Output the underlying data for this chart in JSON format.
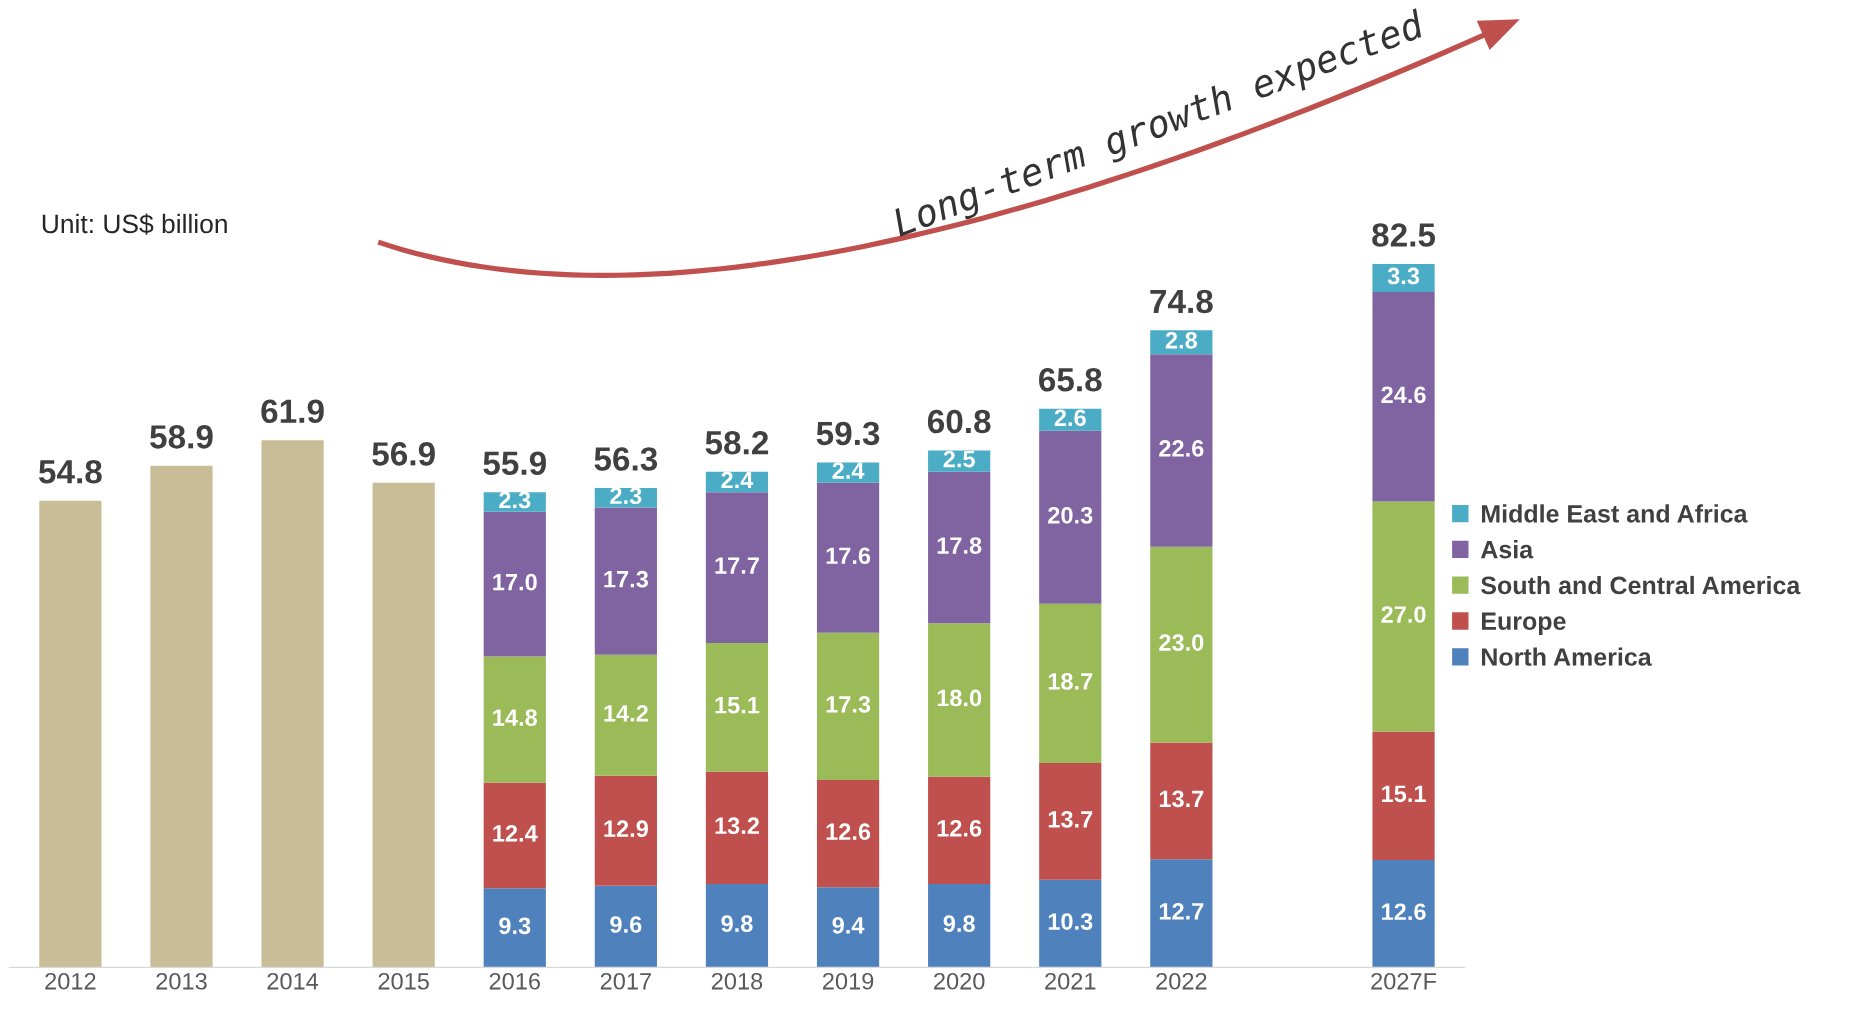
{
  "chart_data": {
    "type": "bar",
    "stacked": true,
    "categories": [
      "2012",
      "2013",
      "2014",
      "2015",
      "2016",
      "2017",
      "2018",
      "2019",
      "2020",
      "2021",
      "2022",
      null,
      "2027F"
    ],
    "series": [
      {
        "color": "#c8bd96",
        "values": [
          54.8,
          58.9,
          61.9,
          56.9,
          null,
          null,
          null,
          null,
          null,
          null,
          null,
          null,
          null
        ]
      },
      {
        "name": "North America",
        "color": "#4f81bd",
        "values": [
          null,
          null,
          null,
          null,
          9.3,
          9.6,
          9.8,
          9.4,
          9.8,
          10.3,
          12.7,
          null,
          12.6
        ],
        "value_labels": [
          null,
          null,
          null,
          null,
          "9.3",
          "9.6",
          "9.8",
          "9.4",
          "9.8",
          "10.3",
          "12.7",
          null,
          "12.6"
        ]
      },
      {
        "name": "Europe",
        "color": "#c0504d",
        "values": [
          null,
          null,
          null,
          null,
          12.4,
          12.9,
          13.2,
          12.6,
          12.6,
          13.7,
          13.7,
          null,
          15.1
        ],
        "value_labels": [
          null,
          null,
          null,
          null,
          "12.4",
          "12.9",
          "13.2",
          "12.6",
          "12.6",
          "13.7",
          "13.7",
          null,
          "15.1"
        ]
      },
      {
        "name": "South and Central America",
        "color": "#9bbb59",
        "values": [
          null,
          null,
          null,
          null,
          14.8,
          14.2,
          15.1,
          17.3,
          18.0,
          18.7,
          23.0,
          null,
          27.0
        ],
        "value_labels": [
          null,
          null,
          null,
          null,
          "14.8",
          "14.2",
          "15.1",
          "17.3",
          "18.0",
          "18.7",
          "23.0",
          null,
          "27.0"
        ]
      },
      {
        "name": "Asia",
        "color": "#8064a2",
        "values": [
          null,
          null,
          null,
          null,
          17.0,
          17.3,
          17.7,
          17.6,
          17.8,
          20.3,
          22.6,
          null,
          24.6
        ],
        "value_labels": [
          null,
          null,
          null,
          null,
          "17.0",
          "17.3",
          "17.7",
          "17.6",
          "17.8",
          "20.3",
          "22.6",
          null,
          "24.6"
        ]
      },
      {
        "name": "Middle East and Africa",
        "color": "#4bacc6",
        "values": [
          null,
          null,
          null,
          null,
          2.3,
          2.3,
          2.4,
          2.4,
          2.5,
          2.6,
          2.8,
          null,
          3.3
        ],
        "value_labels": [
          null,
          null,
          null,
          null,
          "2.3",
          "2.3",
          "2.4",
          "2.4",
          "2.5",
          "2.6",
          "2.8",
          null,
          "3.3"
        ]
      }
    ],
    "totals": [
      "54.8",
      "58.9",
      "61.9",
      "56.9",
      "55.9",
      "56.3",
      "58.2",
      "59.3",
      "60.8",
      "65.8",
      "74.8",
      null,
      "82.5"
    ],
    "annotations": [
      "Unit: US$ billion",
      "Long-term growth expected"
    ],
    "legend": "right",
    "grid": false
  }
}
